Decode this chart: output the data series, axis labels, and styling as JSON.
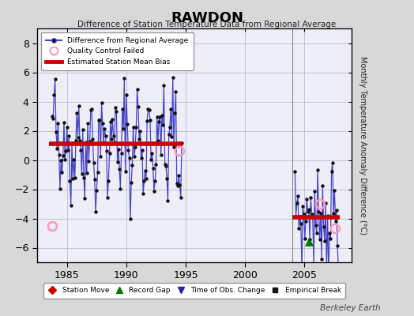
{
  "title": "RAWDON",
  "subtitle": "Difference of Station Temperature Data from Regional Average",
  "ylabel": "Monthly Temperature Anomaly Difference (°C)",
  "ylim": [
    -7,
    9
  ],
  "yticks": [
    -6,
    -4,
    -2,
    0,
    2,
    4,
    6,
    8
  ],
  "xlim": [
    1982.5,
    2009
  ],
  "xticks": [
    1985,
    1990,
    1995,
    2000,
    2005
  ],
  "background_color": "#d8d8d8",
  "plot_bg_color": "#eeeef8",
  "grid_color": "#bbbbcc",
  "segment1_start": 1983.5,
  "segment1_end": 1994.75,
  "bias1": 1.1,
  "segment2_start": 2004.0,
  "segment2_end": 2008.0,
  "bias2": -3.9,
  "qc_failed_points": [
    [
      1983.75,
      -4.5
    ],
    [
      1994.5,
      0.6
    ],
    [
      2006.3,
      -3.0
    ],
    [
      2007.6,
      -4.7
    ]
  ],
  "record_gap_x": 2005.4,
  "record_gap_y": -5.6,
  "vertical_line_x": 2004.0,
  "line_color": "#4444cc",
  "marker_color": "#111111",
  "bias_color": "#cc0000",
  "qc_color": "#ff99bb",
  "gap_color": "#007700",
  "obs_change_color": "#2222aa",
  "station_move_color": "#cc0000"
}
